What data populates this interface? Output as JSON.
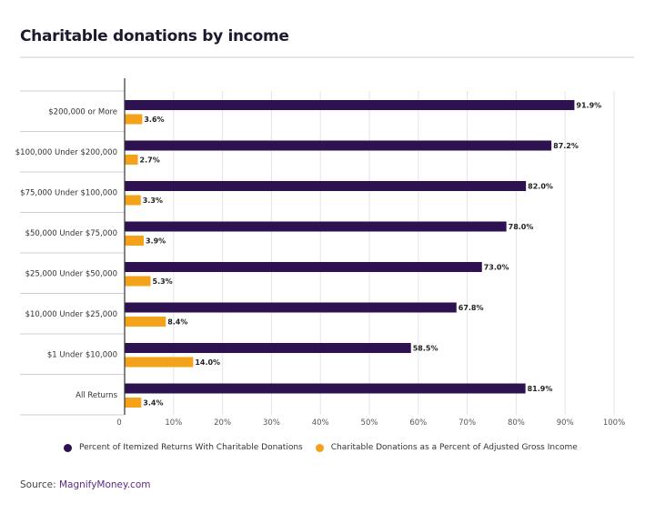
{
  "title": "Charitable donations by income",
  "legend": {
    "series1": "Percent of Itemized Returns With Charitable Donations",
    "series2": "Charitable Donations as a Percent of Adjusted Gross Income"
  },
  "source": {
    "prefix": "Source: ",
    "name": "MagnifyMoney.com"
  },
  "colors": {
    "series1": "#2d1150",
    "series2": "#f5a21b"
  },
  "chart_data": {
    "type": "bar",
    "orientation": "horizontal",
    "categories": [
      "$200,000 or More",
      "$100,000 Under $200,000",
      "$75,000 Under $100,000",
      "$50,000 Under $75,000",
      "$25,000 Under $50,000",
      "$10,000 Under $25,000",
      "$1 Under $10,000",
      "All Returns"
    ],
    "series": [
      {
        "name": "Percent of Itemized Returns With Charitable Donations",
        "values": [
          91.9,
          87.2,
          82.0,
          78.0,
          73.0,
          67.8,
          58.5,
          81.9
        ],
        "labels": [
          "91.9%",
          "87.2%",
          "82.0%",
          "78.0%",
          "73.0%",
          "67.8%",
          "58.5%",
          "81.9%"
        ]
      },
      {
        "name": "Charitable Donations as a Percent of Adjusted Gross Income",
        "values": [
          3.6,
          2.7,
          3.3,
          3.9,
          5.3,
          8.4,
          14.0,
          3.4
        ],
        "labels": [
          "3.6%",
          "2.7%",
          "3.3%",
          "3.9%",
          "5.3%",
          "8.4%",
          "14.0%",
          "3.4%"
        ]
      }
    ],
    "xlim": [
      0,
      100
    ],
    "xticks": [
      "0",
      "10%",
      "20%",
      "30%",
      "40%",
      "50%",
      "60%",
      "70%",
      "80%",
      "90%",
      "100%"
    ],
    "grid": true,
    "legend_position": "bottom"
  }
}
